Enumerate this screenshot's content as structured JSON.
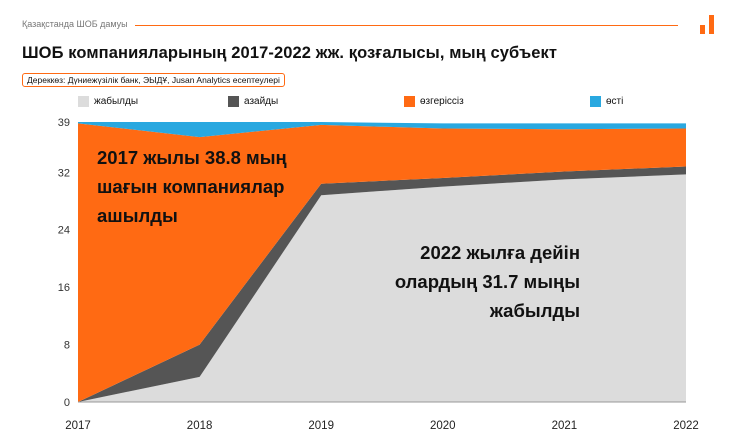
{
  "header": {
    "section_label": "Қазақстанда ШОБ дамуы",
    "title": "ШОБ компанияларының 2017-2022 жж. қозғалысы, мың субъект",
    "source": "Дереккөз: Дүниежүзілік банк, ЭЫДҰ, Jusan Analytics есептеулері"
  },
  "colors": {
    "accent": "#ff6a13",
    "closed": "#dcdcdc",
    "decreased": "#555555",
    "unchanged": "#ff6a13",
    "grew": "#29a8e0"
  },
  "annotations": {
    "opened": [
      "2017 жылы 38.8 мың",
      "шағын компаниялар",
      "ашылды"
    ],
    "closed": [
      "2022 жылға дейін",
      "олардың 31.7 мыңы",
      "жабылды"
    ]
  },
  "chart_data": {
    "type": "area",
    "stacked": true,
    "x": [
      "2017",
      "2018",
      "2019",
      "2020",
      "2021",
      "2022"
    ],
    "y_ticks": [
      0,
      8,
      16,
      24,
      32,
      39
    ],
    "ylim": [
      0,
      39
    ],
    "legend_position": "top",
    "series": [
      {
        "name": "жабылды",
        "color": "#dcdcdc",
        "values": [
          0,
          3.5,
          28.8,
          30.0,
          31.0,
          31.7
        ]
      },
      {
        "name": "азайды",
        "color": "#555555",
        "values": [
          0,
          4.5,
          1.6,
          1.2,
          1.1,
          1.1
        ]
      },
      {
        "name": "өзгеріссіз",
        "color": "#ff6a13",
        "values": [
          38.8,
          28.9,
          8.2,
          6.9,
          5.9,
          5.3
        ]
      },
      {
        "name": "өсті",
        "color": "#29a8e0",
        "values": [
          0.2,
          2.1,
          0.4,
          0.7,
          0.8,
          0.7
        ]
      }
    ]
  }
}
